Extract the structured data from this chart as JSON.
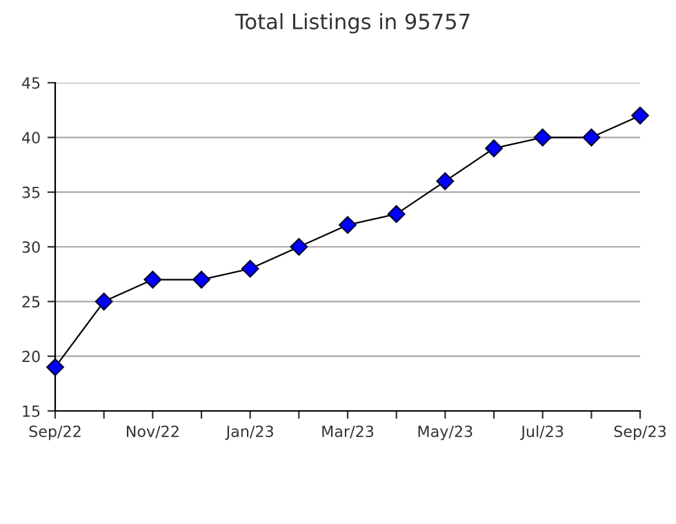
{
  "chart_data": {
    "type": "line",
    "title": "Total Listings in 95757",
    "categories": [
      "Sep/22",
      null,
      "Nov/22",
      null,
      "Jan/23",
      null,
      "Mar/23",
      null,
      "May/23",
      null,
      "Jul/23",
      null,
      "Sep/23"
    ],
    "series": [
      {
        "color": "#0000ff",
        "values": [
          19,
          25,
          27,
          27,
          28,
          30,
          32,
          33,
          36,
          39,
          40,
          40,
          42
        ]
      }
    ],
    "ylim": [
      15,
      45
    ],
    "yticks": [
      15,
      20,
      25,
      30,
      35,
      40,
      45
    ],
    "grid": "y",
    "marker": "diamond",
    "line_style": "solid"
  }
}
